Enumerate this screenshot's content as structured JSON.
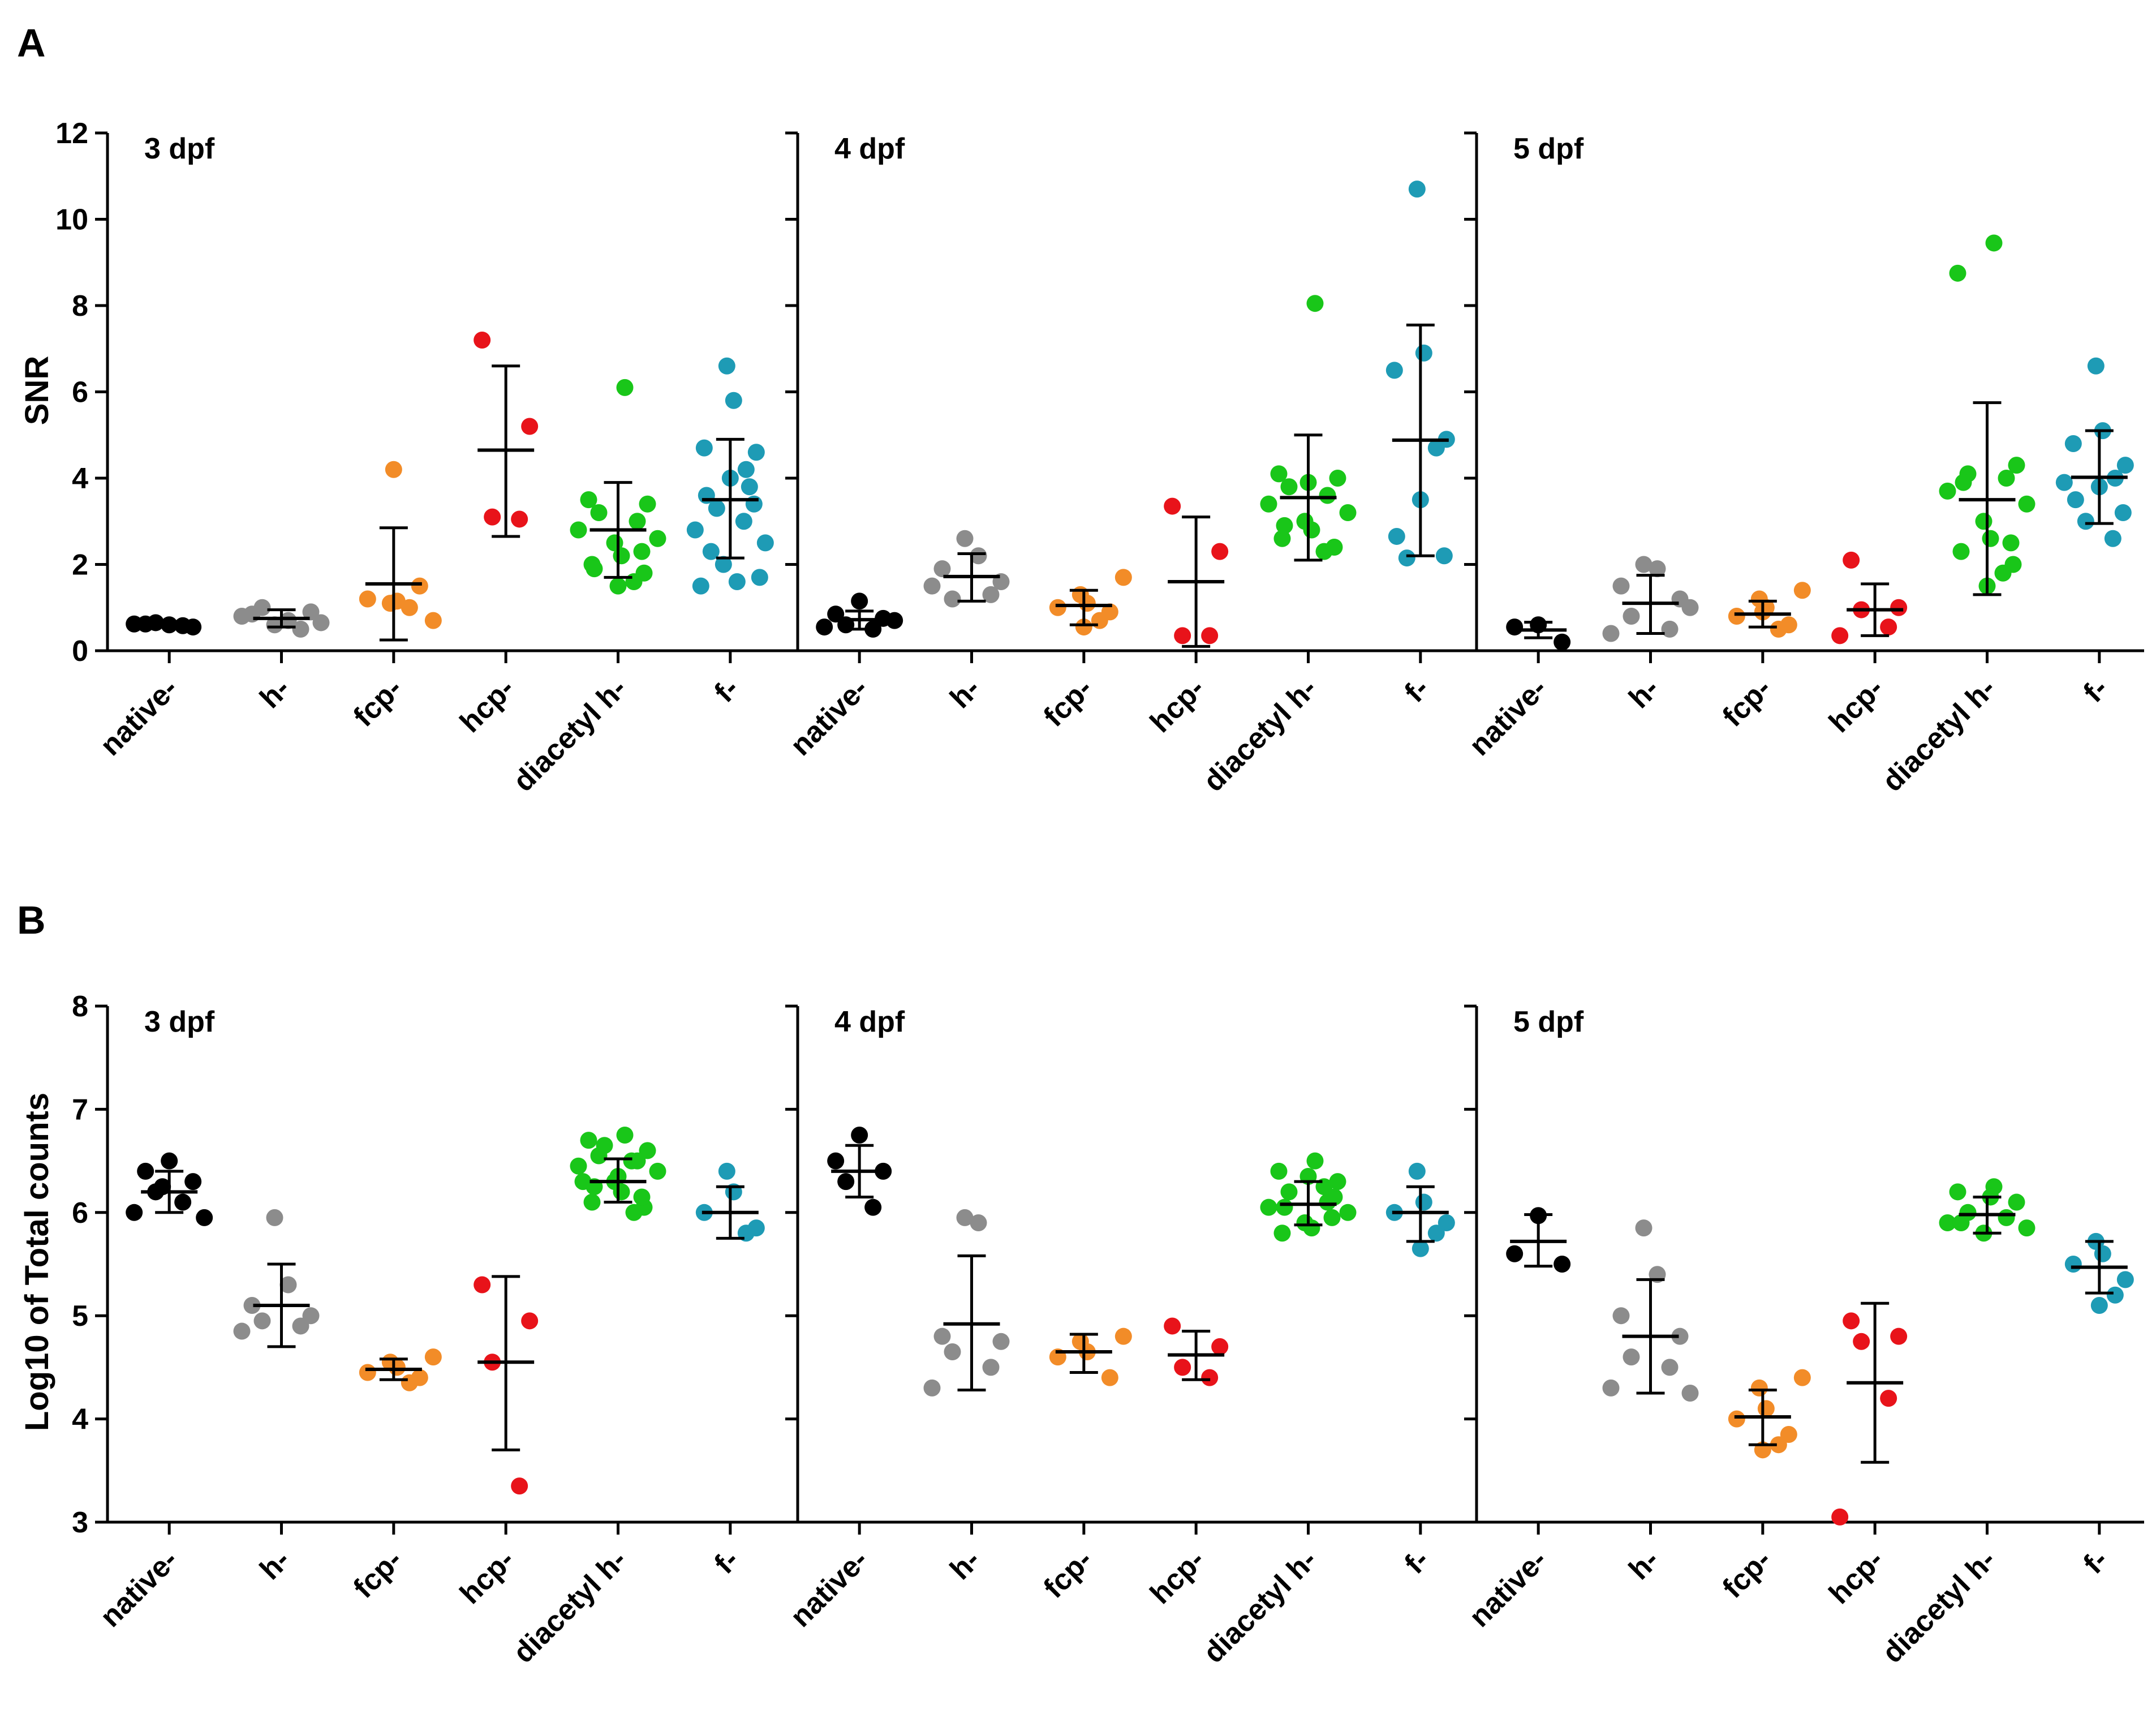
{
  "colors": {
    "native-": "#000000",
    "h-": "#8c8c8c",
    "fcp-": "#f28c28",
    "hcp-": "#e8131a",
    "diacetyl h-": "#19c619",
    "f-": "#1e9bb5"
  },
  "chart_data": [
    {
      "panel": "A",
      "type": "scatter",
      "ylabel": "SNR",
      "ylim": [
        0,
        12
      ],
      "yticks": [
        "0",
        "2",
        "4",
        "6",
        "8",
        "10",
        "12"
      ],
      "categories": [
        "native-",
        "h-",
        "fcp-",
        "hcp-",
        "diacetyl h-",
        "f-"
      ],
      "groups": [
        {
          "title": "3 dpf",
          "series": [
            {
              "name": "native-",
              "points": [
                0.6,
                0.62,
                0.55,
                0.65,
                0.58,
                0.62
              ],
              "mean": 0.62,
              "sd": [
                0.55,
                0.68
              ]
            },
            {
              "name": "h-",
              "points": [
                0.6,
                0.7,
                0.85,
                0.9,
                1.0,
                0.5,
                0.8,
                0.65
              ],
              "mean": 0.75,
              "sd": [
                0.55,
                0.95
              ]
            },
            {
              "name": "fcp-",
              "points": [
                0.7,
                1.1,
                1.15,
                1.2,
                1.5,
                1.0,
                4.2
              ],
              "mean": 1.55,
              "sd": [
                0.25,
                2.85
              ]
            },
            {
              "name": "hcp-",
              "points": [
                7.2,
                5.2,
                3.1,
                3.05
              ],
              "mean": 4.65,
              "sd": [
                2.65,
                6.6
              ]
            },
            {
              "name": "diacetyl h-",
              "points": [
                6.1,
                3.5,
                3.4,
                3.2,
                3.0,
                2.8,
                2.6,
                2.5,
                2.2,
                2.0,
                1.8,
                1.6,
                1.5,
                1.9,
                2.3
              ],
              "mean": 2.8,
              "sd": [
                1.7,
                3.9
              ]
            },
            {
              "name": "f-",
              "points": [
                6.6,
                5.8,
                4.7,
                4.6,
                4.2,
                4.0,
                3.6,
                3.4,
                3.3,
                3.0,
                2.8,
                2.5,
                2.0,
                1.6,
                1.5,
                1.7,
                2.3,
                3.8
              ],
              "mean": 3.5,
              "sd": [
                2.15,
                4.9
              ]
            }
          ]
        },
        {
          "title": "4 dpf",
          "series": [
            {
              "name": "native-",
              "points": [
                1.15,
                0.85,
                0.75,
                0.6,
                0.5,
                0.55,
                0.7
              ],
              "mean": 0.72,
              "sd": [
                0.5,
                0.92
              ]
            },
            {
              "name": "h-",
              "points": [
                2.6,
                2.2,
                1.9,
                1.6,
                1.2,
                1.3,
                1.5
              ],
              "mean": 1.72,
              "sd": [
                1.15,
                2.25
              ]
            },
            {
              "name": "fcp-",
              "points": [
                1.7,
                1.3,
                1.1,
                1.0,
                0.9,
                0.7,
                0.55
              ],
              "mean": 1.05,
              "sd": [
                0.6,
                1.4
              ]
            },
            {
              "name": "hcp-",
              "points": [
                3.35,
                2.3,
                0.35,
                0.35
              ],
              "mean": 1.6,
              "sd": [
                0.1,
                3.1
              ]
            },
            {
              "name": "diacetyl h-",
              "points": [
                8.05,
                4.1,
                4.0,
                3.8,
                3.6,
                3.4,
                3.2,
                3.0,
                2.8,
                2.6,
                2.4,
                2.3,
                3.9,
                2.9
              ],
              "mean": 3.55,
              "sd": [
                2.1,
                5.0
              ]
            },
            {
              "name": "f-",
              "points": [
                10.7,
                6.9,
                6.5,
                4.9,
                4.7,
                3.5,
                2.65,
                2.2,
                2.15
              ],
              "mean": 4.88,
              "sd": [
                2.2,
                7.55
              ]
            }
          ]
        },
        {
          "title": "5 dpf",
          "series": [
            {
              "name": "native-",
              "points": [
                0.6,
                0.55,
                0.2
              ],
              "mean": 0.48,
              "sd": [
                0.3,
                0.66
              ]
            },
            {
              "name": "h-",
              "points": [
                2.0,
                1.9,
                1.5,
                1.2,
                0.8,
                0.5,
                0.4,
                1.0
              ],
              "mean": 1.1,
              "sd": [
                0.4,
                1.75
              ]
            },
            {
              "name": "fcp-",
              "points": [
                1.4,
                1.2,
                1.0,
                0.8,
                0.6,
                0.5,
                0.9
              ],
              "mean": 0.85,
              "sd": [
                0.55,
                1.15
              ]
            },
            {
              "name": "hcp-",
              "points": [
                2.1,
                1.0,
                0.95,
                0.55,
                0.35
              ],
              "mean": 0.95,
              "sd": [
                0.35,
                1.55
              ]
            },
            {
              "name": "diacetyl h-",
              "points": [
                9.45,
                8.75,
                4.3,
                4.1,
                4.0,
                3.7,
                3.4,
                3.0,
                2.6,
                2.3,
                2.0,
                1.8,
                1.5,
                3.9,
                2.5
              ],
              "mean": 3.5,
              "sd": [
                1.3,
                5.75
              ]
            },
            {
              "name": "f-",
              "points": [
                6.6,
                5.1,
                4.8,
                4.3,
                4.0,
                3.8,
                3.5,
                3.2,
                3.0,
                2.6,
                3.9
              ],
              "mean": 4.02,
              "sd": [
                2.95,
                5.1
              ]
            }
          ]
        }
      ]
    },
    {
      "panel": "B",
      "type": "scatter",
      "ylabel": "Log10 of Total counts",
      "ylim": [
        3,
        8
      ],
      "yticks": [
        "3",
        "4",
        "5",
        "6",
        "7",
        "8"
      ],
      "categories": [
        "native-",
        "h-",
        "fcp-",
        "hcp-",
        "diacetyl h-",
        "f-"
      ],
      "groups": [
        {
          "title": "3 dpf",
          "series": [
            {
              "name": "native-",
              "points": [
                6.5,
                6.4,
                6.3,
                6.2,
                6.1,
                6.0,
                5.95,
                6.25
              ],
              "mean": 6.2,
              "sd": [
                6.0,
                6.4
              ]
            },
            {
              "name": "h-",
              "points": [
                5.95,
                5.3,
                5.1,
                5.0,
                4.95,
                4.9,
                4.85
              ],
              "mean": 5.1,
              "sd": [
                4.7,
                5.5
              ]
            },
            {
              "name": "fcp-",
              "points": [
                4.6,
                4.55,
                4.5,
                4.45,
                4.4,
                4.35
              ],
              "mean": 4.48,
              "sd": [
                4.38,
                4.58
              ]
            },
            {
              "name": "hcp-",
              "points": [
                5.3,
                4.95,
                4.55,
                3.35
              ],
              "mean": 4.55,
              "sd": [
                3.7,
                5.38
              ]
            },
            {
              "name": "diacetyl h-",
              "points": [
                6.75,
                6.7,
                6.6,
                6.55,
                6.5,
                6.45,
                6.4,
                6.3,
                6.2,
                6.1,
                6.05,
                6.0,
                6.35,
                6.25,
                6.15,
                6.65,
                6.5,
                6.3
              ],
              "mean": 6.3,
              "sd": [
                6.1,
                6.52
              ]
            },
            {
              "name": "f-",
              "points": [
                6.4,
                6.2,
                6.0,
                5.85,
                5.8
              ],
              "mean": 6.0,
              "sd": [
                5.75,
                6.25
              ]
            }
          ]
        },
        {
          "title": "4 dpf",
          "series": [
            {
              "name": "native-",
              "points": [
                6.75,
                6.5,
                6.4,
                6.3,
                6.05
              ],
              "mean": 6.4,
              "sd": [
                6.15,
                6.65
              ]
            },
            {
              "name": "h-",
              "points": [
                5.95,
                5.9,
                4.8,
                4.75,
                4.65,
                4.5,
                4.3
              ],
              "mean": 4.92,
              "sd": [
                4.28,
                5.58
              ]
            },
            {
              "name": "fcp-",
              "points": [
                4.8,
                4.75,
                4.65,
                4.6,
                4.4
              ],
              "mean": 4.65,
              "sd": [
                4.45,
                4.82
              ]
            },
            {
              "name": "hcp-",
              "points": [
                4.9,
                4.7,
                4.5,
                4.4
              ],
              "mean": 4.62,
              "sd": [
                4.38,
                4.85
              ]
            },
            {
              "name": "diacetyl h-",
              "points": [
                6.5,
                6.4,
                6.3,
                6.2,
                6.1,
                6.05,
                6.0,
                5.9,
                5.85,
                5.8,
                6.15,
                6.25,
                6.35,
                6.05,
                5.95
              ],
              "mean": 6.08,
              "sd": [
                5.88,
                6.3
              ]
            },
            {
              "name": "f-",
              "points": [
                6.4,
                6.1,
                6.0,
                5.9,
                5.8,
                5.65
              ],
              "mean": 6.0,
              "sd": [
                5.72,
                6.25
              ]
            }
          ]
        },
        {
          "title": "5 dpf",
          "series": [
            {
              "name": "native-",
              "points": [
                5.97,
                5.6,
                5.5
              ],
              "mean": 5.72,
              "sd": [
                5.48,
                5.98
              ]
            },
            {
              "name": "h-",
              "points": [
                5.85,
                5.4,
                5.0,
                4.8,
                4.6,
                4.5,
                4.3,
                4.25
              ],
              "mean": 4.8,
              "sd": [
                4.25,
                5.35
              ]
            },
            {
              "name": "fcp-",
              "points": [
                4.4,
                4.3,
                4.1,
                4.0,
                3.85,
                3.75,
                3.7
              ],
              "mean": 4.02,
              "sd": [
                3.75,
                4.28
              ]
            },
            {
              "name": "hcp-",
              "points": [
                4.95,
                4.8,
                4.75,
                4.2,
                3.05
              ],
              "mean": 4.35,
              "sd": [
                3.58,
                5.12
              ]
            },
            {
              "name": "diacetyl h-",
              "points": [
                6.25,
                6.2,
                6.1,
                6.0,
                5.95,
                5.9,
                5.85,
                5.8,
                6.15,
                5.9
              ],
              "mean": 5.98,
              "sd": [
                5.8,
                6.15
              ]
            },
            {
              "name": "f-",
              "points": [
                5.72,
                5.6,
                5.5,
                5.35,
                5.2,
                5.1
              ],
              "mean": 5.47,
              "sd": [
                5.22,
                5.72
              ]
            }
          ]
        }
      ]
    }
  ]
}
